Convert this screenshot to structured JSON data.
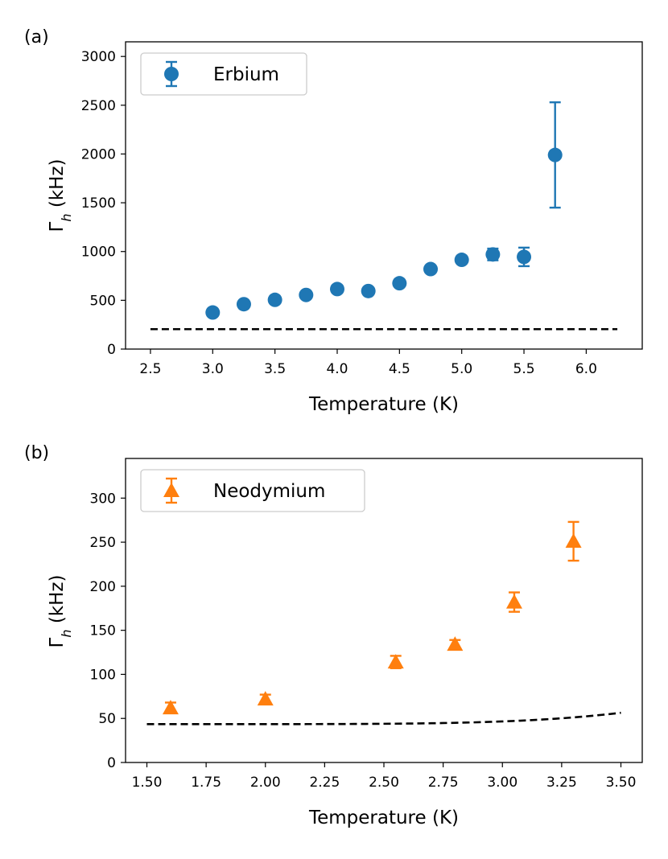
{
  "chart_data": [
    {
      "type": "scatter",
      "panel_label": "(a)",
      "xlabel": "Temperature (K)",
      "ylabel_main": "Γ",
      "ylabel_sub": "h",
      "ylabel_unit": " (kHz)",
      "xlim": [
        2.3,
        6.45
      ],
      "ylim": [
        0,
        3150
      ],
      "xticks": [
        2.5,
        3.0,
        3.5,
        4.0,
        4.5,
        5.0,
        5.5,
        6.0
      ],
      "xtick_labels": [
        "2.5",
        "3.0",
        "3.5",
        "4.0",
        "4.5",
        "5.0",
        "5.5",
        "6.0"
      ],
      "yticks": [
        0,
        500,
        1000,
        1500,
        2000,
        2500,
        3000
      ],
      "ytick_labels": [
        "0",
        "500",
        "1000",
        "1500",
        "2000",
        "2500",
        "3000"
      ],
      "legend": {
        "label": "Erbium",
        "position": "top-left"
      },
      "color": "#1f77b4",
      "marker": "circle",
      "series": [
        {
          "name": "Erbium",
          "x": [
            3.0,
            3.25,
            3.5,
            3.75,
            4.0,
            4.25,
            4.5,
            4.75,
            5.0,
            5.25,
            5.5,
            5.75
          ],
          "y": [
            375,
            460,
            505,
            555,
            615,
            595,
            675,
            820,
            915,
            970,
            945,
            1990
          ],
          "err": [
            15,
            15,
            15,
            15,
            15,
            15,
            15,
            25,
            25,
            60,
            95,
            540
          ]
        }
      ],
      "fit": {
        "style": "dashed",
        "color": "#000000",
        "x_start": 2.5,
        "x_end": 6.25,
        "A": 204,
        "B": 4.1,
        "E": 26,
        "samples": 80
      }
    },
    {
      "type": "scatter",
      "panel_label": "(b)",
      "xlabel": "Temperature (K)",
      "ylabel_main": "Γ",
      "ylabel_sub": "h",
      "ylabel_unit": " (kHz)",
      "xlim": [
        1.41,
        3.59
      ],
      "ylim": [
        0,
        345
      ],
      "xticks": [
        1.5,
        1.75,
        2.0,
        2.25,
        2.5,
        2.75,
        3.0,
        3.25,
        3.5
      ],
      "xtick_labels": [
        "1.50",
        "1.75",
        "2.00",
        "2.25",
        "2.50",
        "2.75",
        "3.00",
        "3.25",
        "3.50"
      ],
      "yticks": [
        0,
        50,
        100,
        150,
        200,
        250,
        300
      ],
      "ytick_labels": [
        "0",
        "50",
        "100",
        "150",
        "200",
        "250",
        "300"
      ],
      "legend": {
        "label": "Neodymium",
        "position": "top-left"
      },
      "color": "#ff7f0e",
      "marker": "triangle",
      "series": [
        {
          "name": "Neodymium",
          "x": [
            1.6,
            2.0,
            2.55,
            2.8,
            3.05,
            3.3
          ],
          "y": [
            62,
            72,
            114,
            134,
            182,
            251
          ],
          "err": [
            6,
            5,
            7,
            5,
            11,
            22
          ]
        }
      ],
      "fit": {
        "style": "dashed",
        "color": "#000000",
        "x_start": 1.5,
        "x_end": 3.5,
        "A": 43.5,
        "B": 68000,
        "E": 30,
        "samples": 80
      }
    }
  ]
}
